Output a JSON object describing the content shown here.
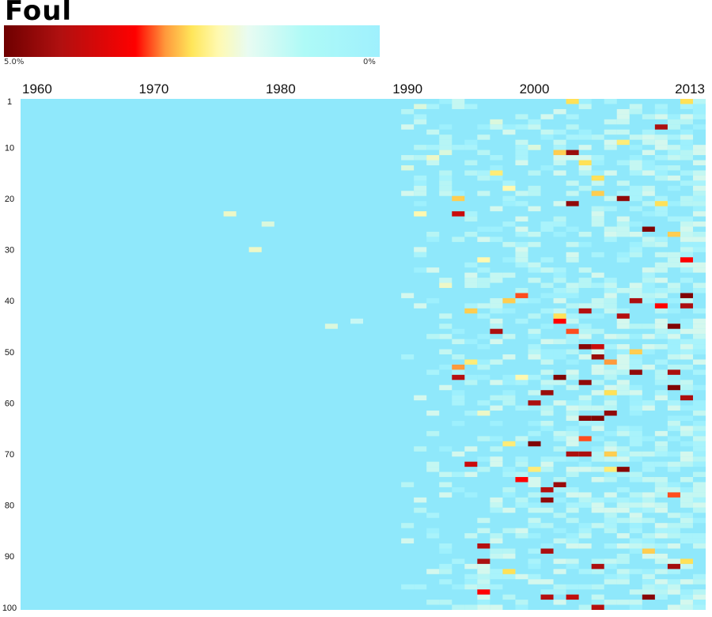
{
  "title": "Foul",
  "legend": {
    "max_label": "5.0%",
    "min_label": "0%",
    "colors": [
      "#6e0000",
      "#ff0000",
      "#ffe65a",
      "#e8fbf2",
      "#9ff0fd"
    ]
  },
  "chart_data": {
    "type": "heatmap",
    "title": "Foul",
    "x_range": [
      1960,
      2013
    ],
    "x_ticks": [
      "1960",
      "1970",
      "1980",
      "1990",
      "2000",
      "2013"
    ],
    "y_range": [
      1,
      100
    ],
    "y_ticks": [
      "1",
      "10",
      "20",
      "30",
      "40",
      "50",
      "60",
      "70",
      "80",
      "90",
      "100"
    ],
    "value_range": [
      0,
      5.0
    ],
    "value_unit": "%",
    "background_color": "#8fe8fb",
    "cells": [
      [
        1976,
        23,
        0.8
      ],
      [
        1978,
        30,
        0.8
      ],
      [
        1979,
        25,
        0.6
      ],
      [
        1984,
        45,
        0.6
      ],
      [
        1986,
        44,
        0.4
      ],
      [
        1990,
        14,
        0.6
      ],
      [
        1991,
        23,
        1.0
      ],
      [
        1991,
        2,
        0.6
      ],
      [
        1992,
        12,
        0.8
      ],
      [
        1993,
        11,
        0.6
      ],
      [
        1993,
        37,
        0.8
      ],
      [
        1994,
        23,
        4.0
      ],
      [
        1994,
        20,
        2.0
      ],
      [
        1994,
        53,
        2.5
      ],
      [
        1994,
        55,
        4.2
      ],
      [
        1995,
        42,
        2.0
      ],
      [
        1995,
        72,
        4.0
      ],
      [
        1995,
        52,
        1.5
      ],
      [
        1996,
        88,
        4.2
      ],
      [
        1996,
        91,
        4.3
      ],
      [
        1996,
        32,
        1.0
      ],
      [
        1996,
        62,
        0.8
      ],
      [
        1996,
        97,
        3.5
      ],
      [
        1997,
        46,
        4.3
      ],
      [
        1997,
        15,
        1.5
      ],
      [
        1997,
        5,
        0.6
      ],
      [
        1998,
        40,
        2.0
      ],
      [
        1998,
        93,
        1.8
      ],
      [
        1998,
        68,
        1.5
      ],
      [
        1998,
        18,
        1.0
      ],
      [
        1999,
        39,
        3.0
      ],
      [
        1999,
        75,
        3.5
      ],
      [
        1999,
        55,
        1.0
      ],
      [
        2000,
        68,
        4.8
      ],
      [
        2000,
        60,
        4.3
      ],
      [
        2000,
        73,
        1.5
      ],
      [
        2000,
        10,
        0.6
      ],
      [
        2001,
        77,
        4.2
      ],
      [
        2001,
        79,
        4.6
      ],
      [
        2001,
        58,
        4.5
      ],
      [
        2001,
        89,
        4.3
      ],
      [
        2001,
        98,
        4.2
      ],
      [
        2002,
        76,
        4.5
      ],
      [
        2002,
        55,
        4.8
      ],
      [
        2002,
        44,
        3.5
      ],
      [
        2002,
        11,
        2.0
      ],
      [
        2002,
        43,
        1.8
      ],
      [
        2003,
        21,
        4.6
      ],
      [
        2003,
        11,
        4.5
      ],
      [
        2003,
        70,
        4.3
      ],
      [
        2003,
        46,
        3.0
      ],
      [
        2003,
        1,
        1.8
      ],
      [
        2003,
        98,
        4.1
      ],
      [
        2004,
        49,
        4.7
      ],
      [
        2004,
        63,
        4.7
      ],
      [
        2004,
        70,
        4.3
      ],
      [
        2004,
        67,
        3.0
      ],
      [
        2004,
        56,
        4.6
      ],
      [
        2004,
        42,
        4.2
      ],
      [
        2004,
        13,
        1.8
      ],
      [
        2005,
        49,
        4.0
      ],
      [
        2005,
        51,
        4.5
      ],
      [
        2005,
        63,
        4.8
      ],
      [
        2005,
        16,
        1.8
      ],
      [
        2005,
        19,
        2.0
      ],
      [
        2005,
        92,
        4.3
      ],
      [
        2005,
        101,
        4.2
      ],
      [
        2006,
        52,
        2.5
      ],
      [
        2006,
        62,
        4.6
      ],
      [
        2006,
        58,
        1.8
      ],
      [
        2006,
        70,
        2.0
      ],
      [
        2006,
        73,
        1.5
      ],
      [
        2007,
        43,
        4.2
      ],
      [
        2007,
        73,
        4.7
      ],
      [
        2007,
        20,
        4.6
      ],
      [
        2007,
        9,
        1.5
      ],
      [
        2008,
        40,
        4.3
      ],
      [
        2008,
        50,
        2.0
      ],
      [
        2008,
        54,
        4.6
      ],
      [
        2009,
        26,
        4.8
      ],
      [
        2009,
        89,
        2.0
      ],
      [
        2009,
        98,
        4.7
      ],
      [
        2010,
        6,
        4.3
      ],
      [
        2010,
        41,
        3.5
      ],
      [
        2010,
        21,
        1.8
      ],
      [
        2011,
        45,
        4.8
      ],
      [
        2011,
        54,
        4.3
      ],
      [
        2011,
        57,
        4.8
      ],
      [
        2011,
        92,
        4.4
      ],
      [
        2011,
        78,
        3.0
      ],
      [
        2011,
        27,
        2.0
      ],
      [
        2012,
        32,
        3.5
      ],
      [
        2012,
        39,
        4.8
      ],
      [
        2012,
        41,
        4.3
      ],
      [
        2012,
        59,
        4.3
      ],
      [
        2012,
        91,
        1.8
      ],
      [
        2012,
        1,
        1.8
      ]
    ]
  }
}
